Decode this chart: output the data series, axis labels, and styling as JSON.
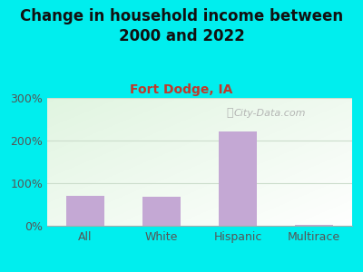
{
  "title": "Change in household income between\n2000 and 2022",
  "subtitle": "Fort Dodge, IA",
  "categories": [
    "All",
    "White",
    "Hispanic",
    "Multirace"
  ],
  "values": [
    70,
    68,
    222,
    2
  ],
  "bar_color": "#c4a8d4",
  "title_fontsize": 12,
  "subtitle_fontsize": 10,
  "subtitle_color": "#c0392b",
  "title_color": "#111111",
  "bg_outer": "#00eeee",
  "yticks": [
    0,
    100,
    200,
    300
  ],
  "ylim": [
    0,
    300
  ],
  "grid_color": "#ccddcc",
  "watermark": "City-Data.com",
  "tick_color": "#555555",
  "tick_fontsize": 9,
  "bar_width": 0.5
}
